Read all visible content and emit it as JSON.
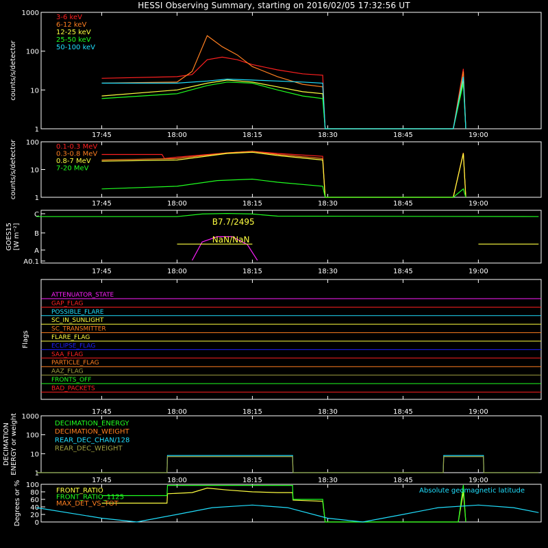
{
  "title": "HESSI Observing Summary, starting on 2016/02/05 17:32:56 UT",
  "time_ticks": [
    "17:45",
    "18:00",
    "18:15",
    "18:30",
    "18:45",
    "19:00"
  ],
  "colors": {
    "red": "#ff2020",
    "orange": "#ff7f20",
    "yellow": "#ffff40",
    "green": "#20ff20",
    "cyan": "#20e0ff",
    "magenta": "#ff20ff",
    "blue": "#2020ff",
    "olive": "#a0a040",
    "axis": "#ffffff"
  },
  "chart_data": [
    {
      "type": "line",
      "panel": "counts-low",
      "ylabel": "counts/s/detector",
      "yscale": "log",
      "ylim": [
        1,
        1000
      ],
      "y_ticks": [
        "1",
        "10",
        "100",
        "1000"
      ],
      "legend": [
        "3-6 keV",
        "6-12 keV",
        "12-25 keV",
        "25-50 keV",
        "50-100 keV"
      ],
      "series": [
        {
          "name": "3-6 keV",
          "color": "red",
          "x": [
            "17:45",
            "18:00",
            "18:03",
            "18:06",
            "18:09",
            "18:12",
            "18:15",
            "18:20",
            "18:25",
            "18:29",
            "18:29.5",
            "18:55",
            "18:57",
            "18:57.5"
          ],
          "y": [
            20,
            22,
            25,
            60,
            70,
            60,
            45,
            33,
            26,
            24,
            1,
            1,
            35,
            1
          ]
        },
        {
          "name": "6-12 keV",
          "color": "orange",
          "x": [
            "17:45",
            "18:00",
            "18:03",
            "18:06",
            "18:09",
            "18:12",
            "18:15",
            "18:20",
            "18:25",
            "18:29",
            "18:29.5",
            "18:55",
            "18:57",
            "18:57.5"
          ],
          "y": [
            15,
            16,
            30,
            250,
            130,
            80,
            40,
            22,
            14,
            12,
            1,
            1,
            30,
            1
          ]
        },
        {
          "name": "12-25 keV",
          "color": "yellow",
          "x": [
            "17:45",
            "18:00",
            "18:06",
            "18:10",
            "18:15",
            "18:20",
            "18:25",
            "18:29",
            "18:29.5",
            "18:55",
            "18:57",
            "18:57.5"
          ],
          "y": [
            7,
            10,
            15,
            18,
            16,
            12,
            9,
            8,
            1,
            1,
            18,
            1
          ]
        },
        {
          "name": "25-50 keV",
          "color": "green",
          "x": [
            "17:45",
            "18:00",
            "18:06",
            "18:10",
            "18:15",
            "18:20",
            "18:25",
            "18:29",
            "18:29.5",
            "18:55",
            "18:57",
            "18:57.5"
          ],
          "y": [
            6,
            8,
            13,
            16,
            15,
            10,
            7,
            6,
            1,
            1,
            15,
            1
          ]
        },
        {
          "name": "50-100 keV",
          "color": "cyan",
          "x": [
            "17:45",
            "18:00",
            "18:06",
            "18:10",
            "18:15",
            "18:20",
            "18:25",
            "18:29",
            "18:29.5",
            "18:55",
            "18:57",
            "18:57.5"
          ],
          "y": [
            15,
            15,
            17,
            19,
            18,
            17,
            16,
            15,
            1,
            1,
            22,
            1
          ]
        }
      ]
    },
    {
      "type": "line",
      "panel": "counts-high",
      "ylabel": "counts/s/detector",
      "yscale": "log",
      "ylim": [
        1,
        100
      ],
      "y_ticks": [
        "1",
        "10",
        "100"
      ],
      "legend": [
        "0.1-0.3 MeV",
        "0.3-0.8 MeV",
        "0.8-7 MeV",
        "7-20 MeV"
      ],
      "series": [
        {
          "name": "0.1-0.3 MeV",
          "color": "red",
          "x": [
            "17:45",
            "17:57",
            "17:57.5",
            "18:00",
            "18:10",
            "18:15",
            "18:20",
            "18:29",
            "18:29.5",
            "18:55",
            "18:57",
            "18:57.5"
          ],
          "y": [
            35,
            35,
            25,
            28,
            40,
            45,
            38,
            30,
            1,
            1,
            40,
            1
          ]
        },
        {
          "name": "0.3-0.8 MeV",
          "color": "orange",
          "x": [
            "17:45",
            "18:00",
            "18:10",
            "18:15",
            "18:20",
            "18:29",
            "18:29.5",
            "18:55",
            "18:57",
            "18:57.5"
          ],
          "y": [
            22,
            25,
            40,
            45,
            35,
            25,
            1,
            1,
            40,
            1
          ]
        },
        {
          "name": "0.8-7 MeV",
          "color": "yellow",
          "x": [
            "17:45",
            "18:00",
            "18:10",
            "18:15",
            "18:20",
            "18:29",
            "18:29.5",
            "18:55",
            "18:57",
            "18:57.5"
          ],
          "y": [
            20,
            22,
            38,
            42,
            32,
            22,
            1,
            1,
            38,
            1
          ]
        },
        {
          "name": "7-20 MeV",
          "color": "green",
          "x": [
            "17:45",
            "18:00",
            "18:08",
            "18:15",
            "18:20",
            "18:29",
            "18:29.5",
            "18:55",
            "18:57",
            "18:57.5"
          ],
          "y": [
            2,
            2.5,
            4,
            4.5,
            3.5,
            2.5,
            1,
            1,
            2,
            1
          ]
        }
      ]
    },
    {
      "type": "line",
      "panel": "goes",
      "ylabel": "GOES15",
      "ylabel2": "[W m⁻²]",
      "y_ticks": [
        "A0.1",
        "A",
        "B",
        "C"
      ],
      "annotations": [
        "B7.7/2495",
        "NaN/NaN"
      ],
      "series": [
        {
          "color": "green",
          "x": [
            "17:32",
            "18:00",
            "18:05",
            "18:10",
            "18:15",
            "18:20",
            "19:12"
          ],
          "y": [
            0.88,
            0.88,
            0.93,
            0.94,
            0.93,
            0.89,
            0.88
          ]
        },
        {
          "color": "magenta",
          "x": [
            "18:03",
            "18:05",
            "18:08",
            "18:11",
            "18:14",
            "18:16"
          ],
          "y": [
            0.05,
            0.4,
            0.5,
            0.5,
            0.35,
            0.05
          ]
        },
        {
          "color": "yellow",
          "x": [
            "18:00",
            "18:15"
          ],
          "y": [
            0.36,
            0.36
          ]
        },
        {
          "color": "yellow",
          "x": [
            "19:00",
            "19:12"
          ],
          "y": [
            0.36,
            0.36
          ]
        }
      ]
    },
    {
      "type": "line",
      "panel": "flags",
      "ylabel": "Flags",
      "flags": [
        {
          "label": "ATTENUATOR_STATE",
          "color": "magenta"
        },
        {
          "label": "GAP_FLAG",
          "color": "red"
        },
        {
          "label": "POSSIBLE_FLARE",
          "color": "cyan"
        },
        {
          "label": "SC_IN_SUNLIGHT",
          "color": "yellow"
        },
        {
          "label": "SC_TRANSMITTER",
          "color": "orange"
        },
        {
          "label": "FLARE_FLAG",
          "color": "yellow"
        },
        {
          "label": "ECLIPSE_FLAG",
          "color": "blue"
        },
        {
          "label": "SAA_FLAG",
          "color": "red"
        },
        {
          "label": "PARTICLE_FLAG",
          "color": "orange"
        },
        {
          "label": "AAZ_FLAG",
          "color": "olive"
        },
        {
          "label": "FRONTS_OFF",
          "color": "green"
        },
        {
          "label": "BAD_PACKETS",
          "color": "red"
        }
      ]
    },
    {
      "type": "line",
      "panel": "decimation",
      "ylabel": "DECIMATION",
      "ylabel2": "ENERGY or weight",
      "yscale": "log",
      "ylim": [
        1,
        1000
      ],
      "y_ticks": [
        "1",
        "10",
        "100",
        "1000"
      ],
      "legend": [
        "DECIMATION_ENERGY",
        "DECIMATION_WEIGHT",
        "REAR_DEC_CHAN/128",
        "REAR_DEC_WEIGHT"
      ],
      "series": [
        {
          "name": "REAR_DEC_CHAN/128",
          "color": "cyan",
          "x": [
            "17:32",
            "17:58",
            "17:58.1",
            "18:23",
            "18:23.1",
            "18:53",
            "18:53.1",
            "19:01",
            "19:01.1",
            "19:12"
          ],
          "y": [
            1,
            1,
            8,
            8,
            1,
            1,
            8,
            8,
            1,
            1
          ]
        },
        {
          "name": "REAR_DEC_WEIGHT",
          "color": "olive",
          "x": [
            "17:32",
            "17:58",
            "17:58.1",
            "18:23",
            "18:23.1",
            "18:53",
            "18:53.1",
            "19:01",
            "19:01.1",
            "19:12"
          ],
          "y": [
            1,
            1,
            7,
            7,
            1,
            1,
            7,
            7,
            1,
            1
          ]
        }
      ]
    },
    {
      "type": "line",
      "panel": "ratios",
      "ylabel": "Degrees or %",
      "ylim": [
        0,
        100
      ],
      "y_ticks": [
        "0",
        "20",
        "40",
        "60",
        "80",
        "100"
      ],
      "legend": [
        "FRONT_RATIO",
        "FRONT_RATIO_1125",
        "MAX_DET_VS_TOT"
      ],
      "annotation_right": "Absolute geomagnetic latitude",
      "series": [
        {
          "name": "FRONT_RATIO",
          "color": "yellow",
          "x": [
            "17:45",
            "17:58",
            "17:58.1",
            "18:03",
            "18:06",
            "18:10",
            "18:15",
            "18:20",
            "18:23",
            "18:23.1",
            "18:29",
            "18:29.5",
            "18:56",
            "18:57",
            "18:57.5"
          ],
          "y": [
            50,
            50,
            75,
            78,
            90,
            85,
            80,
            78,
            78,
            58,
            55,
            0,
            0,
            80,
            0
          ]
        },
        {
          "name": "FRONT_RATIO_1125",
          "color": "green",
          "x": [
            "17:45",
            "17:58",
            "17:58.1",
            "18:23",
            "18:23.1",
            "18:29",
            "18:29.5",
            "18:56",
            "18:57",
            "18:57.5"
          ],
          "y": [
            70,
            70,
            97,
            97,
            60,
            60,
            0,
            0,
            98,
            0
          ]
        },
        {
          "name": "Absolute geomagnetic latitude",
          "color": "cyan",
          "x": [
            "17:32",
            "17:45",
            "17:52",
            "18:00",
            "18:07",
            "18:15",
            "18:22",
            "18:30",
            "18:37",
            "18:45",
            "18:52",
            "19:00",
            "19:07",
            "19:12"
          ],
          "y": [
            38,
            10,
            0,
            20,
            38,
            45,
            38,
            10,
            0,
            20,
            38,
            45,
            38,
            25
          ]
        }
      ]
    }
  ]
}
